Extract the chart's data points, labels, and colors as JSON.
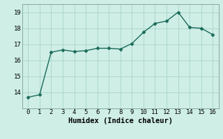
{
  "x": [
    0,
    1,
    2,
    3,
    4,
    5,
    6,
    7,
    8,
    9,
    10,
    11,
    12,
    13,
    14,
    15,
    16
  ],
  "y": [
    13.7,
    13.85,
    16.5,
    16.65,
    16.55,
    16.6,
    16.75,
    16.75,
    16.7,
    17.05,
    17.75,
    18.3,
    18.45,
    19.0,
    18.05,
    18.0,
    17.6
  ],
  "line_color": "#1a6b5a",
  "marker": "D",
  "marker_size": 2.5,
  "xlabel": "Humidex (Indice chaleur)",
  "xlabel_fontsize": 7.5,
  "xlim": [
    -0.5,
    16.5
  ],
  "ylim": [
    13.0,
    19.5
  ],
  "yticks": [
    14,
    15,
    16,
    17,
    18,
    19
  ],
  "xticks": [
    0,
    1,
    2,
    3,
    4,
    5,
    6,
    7,
    8,
    9,
    10,
    11,
    12,
    13,
    14,
    15,
    16
  ],
  "background_color": "#ceeee6",
  "grid_color": "#aed8ce",
  "line_style": "-",
  "line_width": 1.0,
  "tick_fontsize": 6.5
}
